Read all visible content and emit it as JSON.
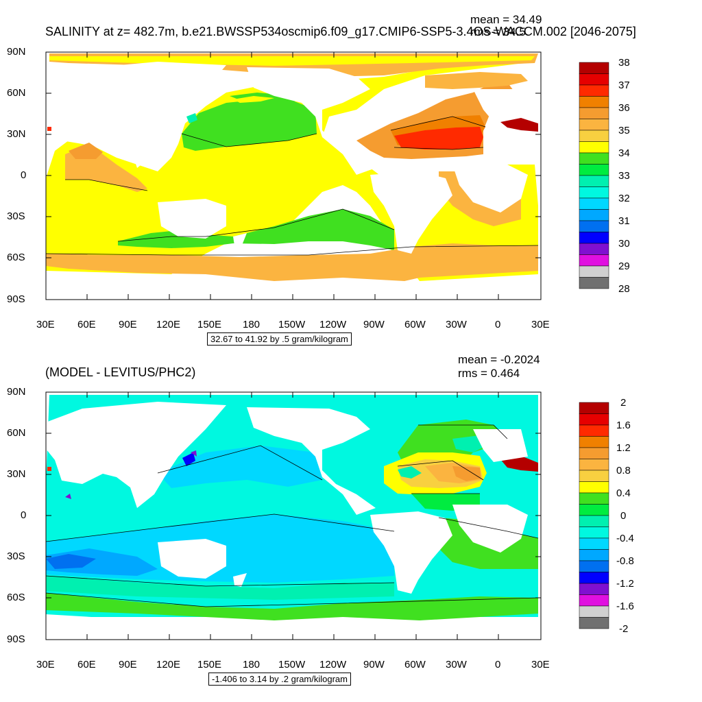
{
  "panels": [
    {
      "title": "SALINITY at z= 482.7m, b.e21.BWSSP534oscmip6.f09_g17.CMIP6-SSP5-3.4OS-WACCM.002 [2046-2075]",
      "mean_label": "mean = 34.49",
      "rms_label": "rms = 34.5",
      "info_box": "32.67 to 41.92 by .5 gram/kilogram",
      "colorbar_labels": [
        "38",
        "37",
        "36",
        "35",
        "34",
        "33",
        "32",
        "31",
        "30",
        "29",
        "28"
      ],
      "colorbar_colors": [
        "#b40000",
        "#e60000",
        "#ff2a00",
        "#f08000",
        "#f59c30",
        "#fbb440",
        "#f8d040",
        "#ffff00",
        "#40e020",
        "#00ec40",
        "#00f0b0",
        "#00f8e0",
        "#00d8ff",
        "#00a8ff",
        "#0070f0",
        "#0000ff",
        "#8010d0",
        "#e010e0",
        "#d0d0d0",
        "#707070"
      ]
    },
    {
      "title": "(MODEL - LEVITUS/PHC2)",
      "mean_label": "mean = -0.2024",
      "rms_label": "rms = 0.464",
      "info_box": "-1.406 to 3.14 by .2 gram/kilogram",
      "colorbar_labels": [
        "2",
        "1.6",
        "1.2",
        "0.8",
        "0.4",
        "0",
        "-0.4",
        "-0.8",
        "-1.2",
        "-1.6",
        "-2"
      ],
      "colorbar_colors": [
        "#b40000",
        "#e60000",
        "#ff2a00",
        "#f08000",
        "#f59c30",
        "#fbb440",
        "#f8d040",
        "#ffff00",
        "#40e020",
        "#00ec40",
        "#00f0b0",
        "#00f8e0",
        "#00d8ff",
        "#00a8ff",
        "#0070f0",
        "#0000ff",
        "#8010d0",
        "#e010e0",
        "#d0d0d0",
        "#707070"
      ]
    }
  ],
  "axes": {
    "lat_labels": [
      "90N",
      "60N",
      "30N",
      "0",
      "30S",
      "60S",
      "90S"
    ],
    "lon_labels": [
      "30E",
      "60E",
      "90E",
      "120E",
      "150E",
      "180",
      "150W",
      "120W",
      "90W",
      "60W",
      "30W",
      "0",
      "30E"
    ]
  }
}
